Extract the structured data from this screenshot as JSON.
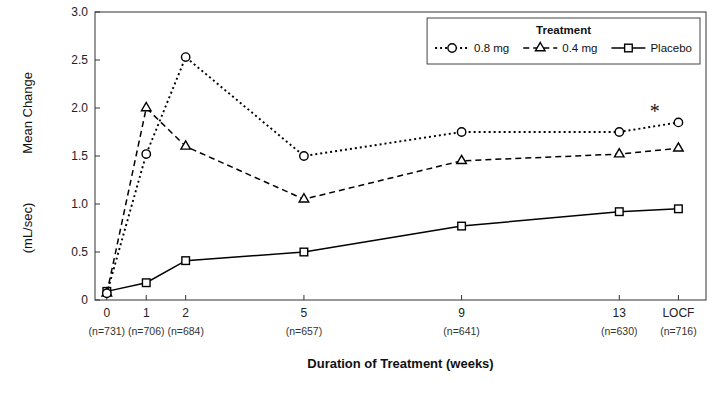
{
  "chart_data": {
    "type": "line",
    "xlabel": "Duration of Treatment (weeks)",
    "ylabel": [
      "Mean Change",
      "(mL/sec)"
    ],
    "x": [
      0,
      1,
      2,
      5,
      9,
      13,
      14.5
    ],
    "xlim": [
      -0.3,
      15.2
    ],
    "xticks": [
      0,
      1,
      2,
      5,
      9,
      13,
      {
        "value": 14.5,
        "label": "LOCF"
      }
    ],
    "ylim": [
      0,
      3.0
    ],
    "yticks": [
      0,
      0.5,
      {
        "value": 1.0,
        "label": "1.0"
      },
      1.5,
      {
        "value": 2.0,
        "label": "2.0"
      },
      2.5,
      {
        "value": 3.0,
        "label": "3.0"
      }
    ],
    "series": [
      {
        "name": "0.8 mg",
        "color": "#000000",
        "marker": "circle",
        "line_style": "dotted",
        "values": [
          0.07,
          1.52,
          2.53,
          1.5,
          1.75,
          1.75,
          1.85
        ]
      },
      {
        "name": "0.4 mg",
        "color": "#000000",
        "marker": "triangle",
        "line_style": "dashed",
        "values": [
          0.07,
          2.0,
          1.6,
          1.05,
          1.45,
          1.52,
          1.58
        ]
      },
      {
        "name": "Placebo",
        "color": "#000000",
        "marker": "square",
        "line_style": "solid",
        "values": [
          0.09,
          0.18,
          0.41,
          0.5,
          0.77,
          0.92,
          0.95
        ]
      }
    ],
    "legend": "upper right",
    "legend_title": "Treatment",
    "grid": false,
    "annotations": [
      {
        "text": "*",
        "x": 13.9,
        "y": 1.97
      },
      {
        "text": "(n=731)",
        "x": 0
      },
      {
        "text": "(n=706)",
        "x": 1
      },
      {
        "text": "(n=684)",
        "x": 2
      },
      {
        "text": "(n=657)",
        "x": 5
      },
      {
        "text": "(n=641)",
        "x": 9
      },
      {
        "text": "(n=630)",
        "x": 13
      },
      {
        "text": "(n=716)",
        "x": 14.5
      }
    ]
  }
}
